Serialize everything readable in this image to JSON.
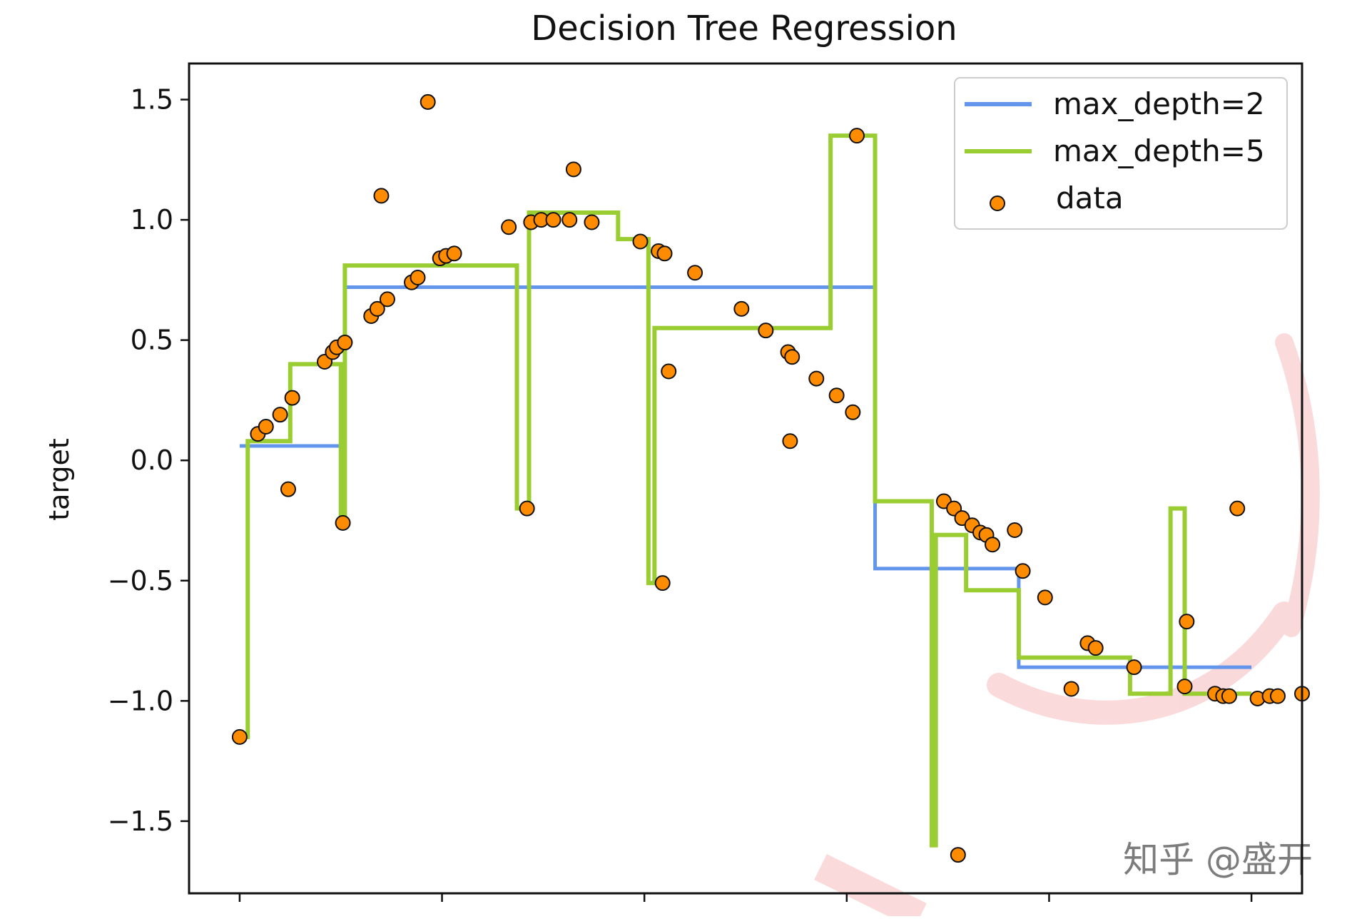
{
  "watermark": "知乎 @盛开",
  "chart_data": {
    "type": "line",
    "title": "Decision Tree Regression",
    "xlabel": "",
    "ylabel": "target",
    "xlim": [
      -0.25,
      5.25
    ],
    "ylim": [
      -1.8,
      1.65
    ],
    "yticks": [
      1.5,
      1.0,
      0.5,
      0.0,
      -0.5,
      -1.0,
      -1.5
    ],
    "ytick_labels": [
      "1.5",
      "1.0",
      "0.5",
      "0.0",
      "−0.5",
      "−1.0",
      "−1.5"
    ],
    "xticks": [
      0,
      1,
      2,
      3,
      4,
      5
    ],
    "grid": false,
    "legend": "top-right",
    "series": [
      {
        "name": "max_depth=2",
        "color": "#6495ED",
        "kind": "step",
        "x": [
          0.0,
          0.52,
          0.52,
          3.14,
          3.14,
          3.85,
          3.85,
          5.0
        ],
        "y": [
          0.06,
          0.06,
          0.72,
          0.72,
          -0.45,
          -0.45,
          -0.86,
          -0.86
        ]
      },
      {
        "name": "max_depth=5",
        "color": "#9ACD32",
        "kind": "step",
        "x": [
          0.0,
          0.04,
          0.04,
          0.25,
          0.25,
          0.5,
          0.5,
          0.52,
          0.52,
          1.37,
          1.37,
          1.43,
          1.43,
          1.87,
          1.87,
          2.02,
          2.02,
          2.05,
          2.05,
          2.1,
          2.1,
          2.92,
          2.92,
          3.14,
          3.14,
          3.42,
          3.42,
          3.44,
          3.44,
          3.59,
          3.59,
          3.85,
          3.85,
          4.4,
          4.4,
          4.6,
          4.6,
          4.67,
          4.67,
          5.0
        ],
        "y": [
          -1.15,
          -1.15,
          0.08,
          0.08,
          0.4,
          0.4,
          -0.26,
          -0.26,
          0.81,
          0.81,
          -0.2,
          -0.2,
          1.03,
          1.03,
          0.92,
          0.92,
          -0.51,
          -0.51,
          0.55,
          0.55,
          0.55,
          0.55,
          1.35,
          1.35,
          -0.17,
          -0.17,
          -1.6,
          -1.6,
          -0.31,
          -0.31,
          -0.54,
          -0.54,
          -0.82,
          -0.82,
          -0.97,
          -0.97,
          -0.2,
          -0.2,
          -0.97,
          -0.97
        ]
      },
      {
        "name": "data",
        "color": "#FF8C00",
        "kind": "scatter",
        "points": [
          [
            0.0,
            -1.15
          ],
          [
            0.09,
            0.11
          ],
          [
            0.13,
            0.14
          ],
          [
            0.2,
            0.19
          ],
          [
            0.24,
            -0.12
          ],
          [
            0.26,
            0.26
          ],
          [
            0.42,
            0.41
          ],
          [
            0.46,
            0.45
          ],
          [
            0.48,
            0.47
          ],
          [
            0.51,
            -0.26
          ],
          [
            0.52,
            0.49
          ],
          [
            0.65,
            0.6
          ],
          [
            0.68,
            0.63
          ],
          [
            0.7,
            1.1
          ],
          [
            0.73,
            0.67
          ],
          [
            0.85,
            0.74
          ],
          [
            0.88,
            0.76
          ],
          [
            0.93,
            1.49
          ],
          [
            0.99,
            0.84
          ],
          [
            1.02,
            0.85
          ],
          [
            1.06,
            0.86
          ],
          [
            1.33,
            0.97
          ],
          [
            1.42,
            -0.2
          ],
          [
            1.44,
            0.99
          ],
          [
            1.49,
            1.0
          ],
          [
            1.55,
            1.0
          ],
          [
            1.63,
            1.0
          ],
          [
            1.65,
            1.21
          ],
          [
            1.74,
            0.99
          ],
          [
            1.98,
            0.91
          ],
          [
            2.07,
            0.87
          ],
          [
            2.09,
            -0.51
          ],
          [
            2.1,
            0.86
          ],
          [
            2.12,
            0.37
          ],
          [
            2.25,
            0.78
          ],
          [
            2.48,
            0.63
          ],
          [
            2.6,
            0.54
          ],
          [
            2.71,
            0.45
          ],
          [
            2.73,
            0.43
          ],
          [
            2.72,
            0.08
          ],
          [
            2.85,
            0.34
          ],
          [
            2.95,
            0.27
          ],
          [
            3.03,
            0.2
          ],
          [
            3.05,
            1.35
          ],
          [
            3.48,
            -0.17
          ],
          [
            3.53,
            -0.2
          ],
          [
            3.57,
            -0.24
          ],
          [
            3.62,
            -0.27
          ],
          [
            3.66,
            -0.3
          ],
          [
            3.69,
            -0.31
          ],
          [
            3.72,
            -0.35
          ],
          [
            3.55,
            -1.64
          ],
          [
            3.83,
            -0.29
          ],
          [
            3.87,
            -0.46
          ],
          [
            3.98,
            -0.57
          ],
          [
            4.19,
            -0.76
          ],
          [
            4.23,
            -0.78
          ],
          [
            4.11,
            -0.95
          ],
          [
            4.42,
            -0.86
          ],
          [
            4.68,
            -0.67
          ],
          [
            4.67,
            -0.94
          ],
          [
            4.82,
            -0.97
          ],
          [
            4.86,
            -0.98
          ],
          [
            4.89,
            -0.98
          ],
          [
            4.93,
            -0.2
          ],
          [
            5.03,
            -0.99
          ],
          [
            5.09,
            -0.98
          ],
          [
            5.13,
            -0.98
          ],
          [
            5.25,
            -0.97
          ]
        ]
      }
    ]
  }
}
